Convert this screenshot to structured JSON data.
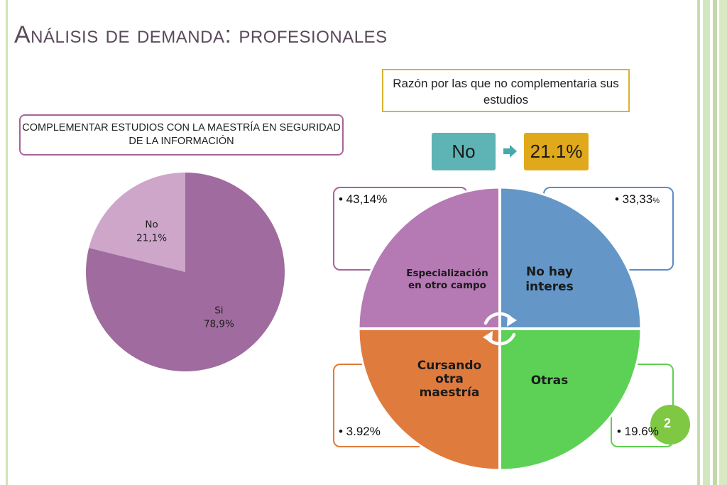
{
  "slide": {
    "title": "Análisis de demanda: profesionales",
    "page_number": "2"
  },
  "left_chart": {
    "label": "COMPLEMENTAR ESTUDIOS CON LA MAESTRÍA EN SEGURIDAD DE LA INFORMACIÓN"
  },
  "right_chart": {
    "label": "Razón por las que no complementaria sus estudios",
    "selected_answer": "No",
    "selected_value": "21.1%",
    "annotations": {
      "especializacion": "• 43,14%",
      "no_hay_interes_main": "• 33,33",
      "no_hay_interes_suffix": "%",
      "cursando": "• 3.92%",
      "otras": "• 19.6%"
    }
  },
  "chart_data": [
    {
      "type": "pie",
      "title": "COMPLEMENTAR ESTUDIOS CON LA MAESTRÍA EN SEGURIDAD DE LA INFORMACIÓN",
      "categories": [
        "Si",
        "No"
      ],
      "values": [
        78.9,
        21.1
      ],
      "data_labels": [
        "78,9%",
        "21,1%"
      ],
      "colors": [
        "#a06b9e",
        "#cda6c9"
      ],
      "legend": "none"
    },
    {
      "type": "diagram",
      "title": "Razón por las que no complementaria sus estudios",
      "categories": [
        "Especialización en otro campo",
        "No hay interes",
        "Otras",
        "Cursando otra maestría"
      ],
      "display_labels": [
        [
          "Especialización",
          "en otro campo"
        ],
        [
          "No hay",
          "interes"
        ],
        [
          "Otras"
        ],
        [
          "Cursando",
          "otra",
          "maestría"
        ]
      ],
      "values": [
        43.14,
        33.33,
        19.6,
        3.92
      ],
      "colors": [
        "#b57ab4",
        "#6497c8",
        "#5cd156",
        "#e07b3e"
      ]
    }
  ]
}
